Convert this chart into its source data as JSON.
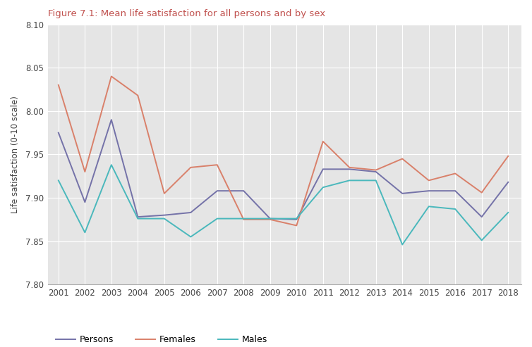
{
  "title": "Figure 7.1: Mean life satisfaction for all persons and by sex",
  "title_color": "#c0504d",
  "xlabel": "",
  "ylabel": "Life satisfaction (0-10 scale)",
  "years": [
    2001,
    2002,
    2003,
    2004,
    2005,
    2006,
    2007,
    2008,
    2009,
    2010,
    2011,
    2012,
    2013,
    2014,
    2015,
    2016,
    2017,
    2018
  ],
  "persons": [
    7.975,
    7.895,
    7.99,
    7.878,
    7.88,
    7.883,
    7.908,
    7.908,
    7.876,
    7.875,
    7.933,
    7.933,
    7.93,
    7.905,
    7.908,
    7.908,
    7.878,
    7.918
  ],
  "females": [
    8.03,
    7.93,
    8.04,
    8.018,
    7.905,
    7.935,
    7.938,
    7.875,
    7.875,
    7.868,
    7.965,
    7.935,
    7.932,
    7.945,
    7.92,
    7.928,
    7.906,
    7.948
  ],
  "males": [
    7.92,
    7.86,
    7.938,
    7.876,
    7.876,
    7.855,
    7.876,
    7.876,
    7.876,
    7.876,
    7.912,
    7.92,
    7.92,
    7.846,
    7.89,
    7.887,
    7.851,
    7.883
  ],
  "persons_color": "#7472a8",
  "females_color": "#d9806a",
  "males_color": "#4ab8bc",
  "background_color": "#e5e5e5",
  "grid_color": "#ffffff",
  "ylim": [
    7.8,
    8.1
  ],
  "yticks": [
    7.8,
    7.85,
    7.9,
    7.95,
    8.0,
    8.05,
    8.1
  ],
  "legend_labels": [
    "Persons",
    "Females",
    "Males"
  ],
  "fig_width": 7.54,
  "fig_height": 4.93,
  "dpi": 100
}
